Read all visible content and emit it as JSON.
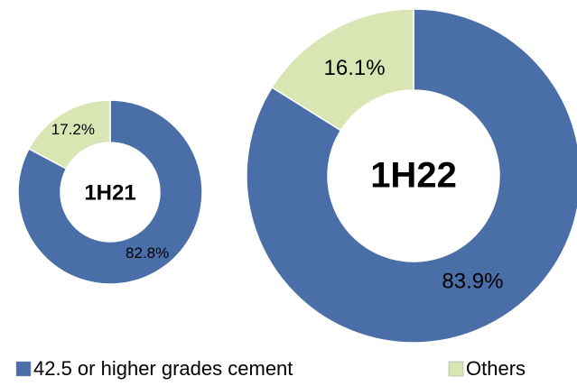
{
  "chart_data": [
    {
      "type": "donut",
      "title": "1H21",
      "categories": [
        "42.5 or higher grades cement",
        "Others"
      ],
      "values": [
        82.8,
        17.2
      ],
      "value_labels": [
        "82.8%",
        "17.2%"
      ],
      "colors": [
        "#4a6fa8",
        "#d9e6b3"
      ]
    },
    {
      "type": "donut",
      "title": "1H22",
      "categories": [
        "42.5 or higher grades cement",
        "Others"
      ],
      "values": [
        83.9,
        16.1
      ],
      "value_labels": [
        "83.9%",
        "16.1%"
      ],
      "colors": [
        "#4a6fa8",
        "#d9e6b3"
      ]
    }
  ]
}
